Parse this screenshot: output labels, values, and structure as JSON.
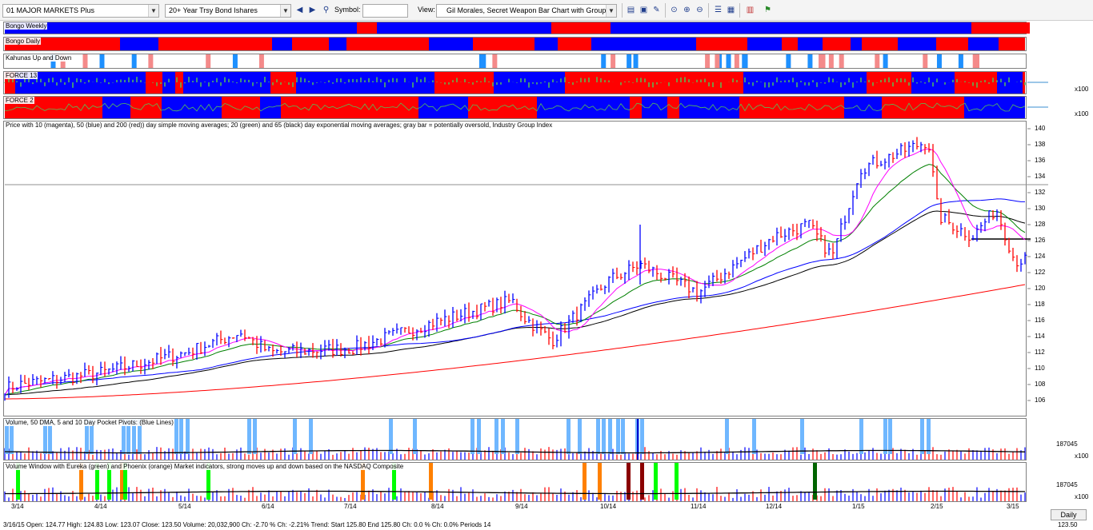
{
  "toolbar": {
    "list_select": "01 MAJOR MARKETS Plus",
    "security_select": "20+ Year Trsy Bond Ishares",
    "symbol_label": "Symbol:",
    "symbol_value": "",
    "view_label": "View:",
    "view_select": "Gil Morales, Secret Weapon Bar Chart with Group Index"
  },
  "indicator_panels": {
    "bongo_weekly": "Bongo Weekly",
    "bongo_daily": "Bongo Daily",
    "kahunas": "Kahunas Up and Down",
    "force13": "FORCE 13",
    "force2": "FORCE 2",
    "x100_a": "x100",
    "x100_b": "x100"
  },
  "price_panel": {
    "label": "Price with 10 (magenta), 50 (blue) and 200 (red)) day simple moving averages; 20 (green) and 65 (black) day exponential moving averages; gray bar = potentially oversold, Industry Group Index"
  },
  "volume_panel": {
    "label": "Volume, 50 DMA, 5 and 10 Day Pocket Pivots: (Blue Lines)",
    "value": "187045",
    "scale": "x100"
  },
  "volume_window": {
    "label": "Volume Window with Eureka (green) and Phoenix (orange) Market indicators, strong moves up and down based on the NASDAQ Composite",
    "value": "187045",
    "scale": "x100"
  },
  "status_bar": {
    "text": "3/16/15  Open: 124.77  High: 124.83  Low: 123.07  Close: 123.50  Volume: 20,032,900  Ch: -2.70  % Ch: -2.21%  Trend: Start 125.80  End 125.80  Ch: 0.0  % Ch: 0.0%  Periods 14",
    "right_value": "123.50"
  },
  "period_button": "Daily",
  "colors": {
    "bull": "#0000ff",
    "bear": "#ff0000",
    "sma10": "#ff00ff",
    "sma50": "#0000ff",
    "sma200": "#ff0000",
    "ema20": "#008000",
    "ema65": "#000000",
    "eureka": "#00ff00",
    "phoenix": "#ff8000",
    "pocket_pivot": "#6fb7ff"
  },
  "chart_data": {
    "type": "bar",
    "title": "",
    "yticks": [
      106,
      108,
      110,
      112,
      114,
      116,
      118,
      120,
      122,
      124,
      126,
      128,
      130,
      132,
      134,
      136,
      138,
      140
    ],
    "ylim": [
      104,
      141
    ],
    "xticks": [
      "3/14",
      "4/14",
      "5/14",
      "6/14",
      "7/14",
      "8/14",
      "9/14",
      "10/14",
      "11/14",
      "12/14",
      "1/15",
      "2/15",
      "3/15"
    ],
    "close_series": [
      {
        "month": "3/14",
        "close": 108.0
      },
      {
        "month": "4/14",
        "close": 109.5
      },
      {
        "month": "5/14",
        "close": 112.0
      },
      {
        "month": "6/14",
        "close": 112.0
      },
      {
        "month": "7/14",
        "close": 112.5
      },
      {
        "month": "8/14",
        "close": 116.0
      },
      {
        "month": "9/14",
        "close": 116.5
      },
      {
        "month": "10/14",
        "close": 121.0
      },
      {
        "month": "11/14",
        "close": 119.5
      },
      {
        "month": "12/14",
        "close": 126.5
      },
      {
        "month": "1/15",
        "close": 135.0
      },
      {
        "month": "2/15",
        "close": 129.0
      },
      {
        "month": "3/15",
        "close": 123.5
      }
    ],
    "oversold_level": 133.0,
    "trend_level": 126.2
  }
}
